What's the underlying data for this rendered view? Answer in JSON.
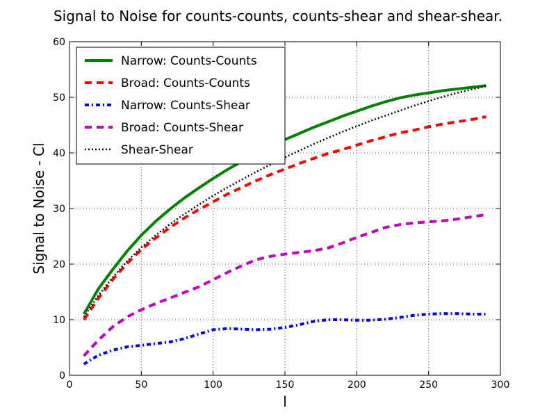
{
  "chart_data": {
    "type": "line",
    "title": "Signal to Noise for counts-counts, counts-shear and shear-shear.",
    "xlabel": "l",
    "ylabel": "Signal to Noise - Cl",
    "xlim": [
      0,
      300
    ],
    "ylim": [
      0,
      60
    ],
    "xticks": [
      0,
      50,
      100,
      150,
      200,
      250,
      300
    ],
    "yticks": [
      0,
      10,
      20,
      30,
      40,
      50,
      60
    ],
    "grid": true,
    "legend_position": "top-left",
    "series": [
      {
        "name": "Narrow: Counts-Counts",
        "color": "#008000",
        "style": "solid",
        "x": [
          10,
          20,
          30,
          40,
          50,
          60,
          70,
          80,
          90,
          100,
          110,
          120,
          130,
          140,
          150,
          160,
          170,
          180,
          190,
          200,
          210,
          220,
          230,
          240,
          250,
          260,
          270,
          280,
          290
        ],
        "y": [
          11,
          15.5,
          19,
          22.3,
          25.2,
          27.7,
          29.9,
          31.9,
          33.7,
          35.4,
          37.0,
          38.5,
          39.9,
          41.2,
          42.4,
          43.5,
          44.6,
          45.6,
          46.6,
          47.5,
          48.4,
          49.2,
          49.9,
          50.4,
          50.8,
          51.2,
          51.5,
          51.8,
          52.1
        ]
      },
      {
        "name": "Broad: Counts-Counts",
        "color": "#ff0000",
        "style": "dashed",
        "x": [
          10,
          20,
          30,
          40,
          50,
          60,
          70,
          80,
          90,
          100,
          110,
          120,
          130,
          140,
          150,
          160,
          170,
          180,
          190,
          200,
          210,
          220,
          230,
          240,
          250,
          260,
          270,
          280,
          290
        ],
        "y": [
          10,
          13.8,
          17.2,
          20.1,
          22.6,
          24.7,
          26.6,
          28.3,
          29.8,
          31.2,
          32.6,
          33.8,
          35.0,
          36.1,
          37.1,
          38.1,
          39.0,
          39.9,
          40.6,
          41.4,
          42.2,
          42.9,
          43.6,
          44.1,
          44.7,
          45.2,
          45.6,
          46.0,
          46.5
        ]
      },
      {
        "name": "Narrow: Counts-Shear",
        "color": "#0000ff",
        "style": "dashdot",
        "x": [
          10,
          20,
          30,
          40,
          50,
          60,
          70,
          80,
          90,
          100,
          110,
          120,
          130,
          140,
          150,
          160,
          170,
          180,
          190,
          200,
          210,
          220,
          230,
          240,
          250,
          260,
          270,
          280,
          290
        ],
        "y": [
          2,
          3.6,
          4.5,
          5.1,
          5.4,
          5.7,
          6.0,
          6.6,
          7.4,
          8.2,
          8.4,
          8.3,
          8.2,
          8.3,
          8.6,
          9.1,
          9.7,
          10.0,
          10.0,
          9.9,
          9.9,
          10.1,
          10.4,
          10.8,
          11.0,
          11.1,
          11.1,
          11.0,
          11.0
        ]
      },
      {
        "name": "Broad: Counts-Shear",
        "color": "#bf00bf",
        "style": "dashed",
        "x": [
          10,
          20,
          30,
          40,
          50,
          60,
          70,
          80,
          90,
          100,
          110,
          120,
          130,
          140,
          150,
          160,
          170,
          180,
          190,
          200,
          210,
          220,
          230,
          240,
          250,
          260,
          270,
          280,
          290
        ],
        "y": [
          3.5,
          6.3,
          8.7,
          10.5,
          11.8,
          12.9,
          13.9,
          14.9,
          15.9,
          17.2,
          18.5,
          19.7,
          20.8,
          21.4,
          21.8,
          22.1,
          22.4,
          22.9,
          23.8,
          24.8,
          25.7,
          26.6,
          27.1,
          27.4,
          27.6,
          27.8,
          28.1,
          28.5,
          28.9
        ]
      },
      {
        "name": "Shear-Shear",
        "color": "#000000",
        "style": "dotted",
        "x": [
          10,
          20,
          30,
          40,
          50,
          60,
          70,
          80,
          90,
          100,
          110,
          120,
          130,
          140,
          150,
          160,
          170,
          180,
          190,
          200,
          210,
          220,
          230,
          240,
          250,
          260,
          270,
          280,
          290
        ],
        "y": [
          10.5,
          14.3,
          17.6,
          20.5,
          23.0,
          25.2,
          27.2,
          29.0,
          30.7,
          32.3,
          33.8,
          35.2,
          36.6,
          37.9,
          39.2,
          40.4,
          41.6,
          42.7,
          43.8,
          44.8,
          45.8,
          46.7,
          47.6,
          48.5,
          49.3,
          50.1,
          50.8,
          51.4,
          52.0
        ]
      }
    ]
  }
}
